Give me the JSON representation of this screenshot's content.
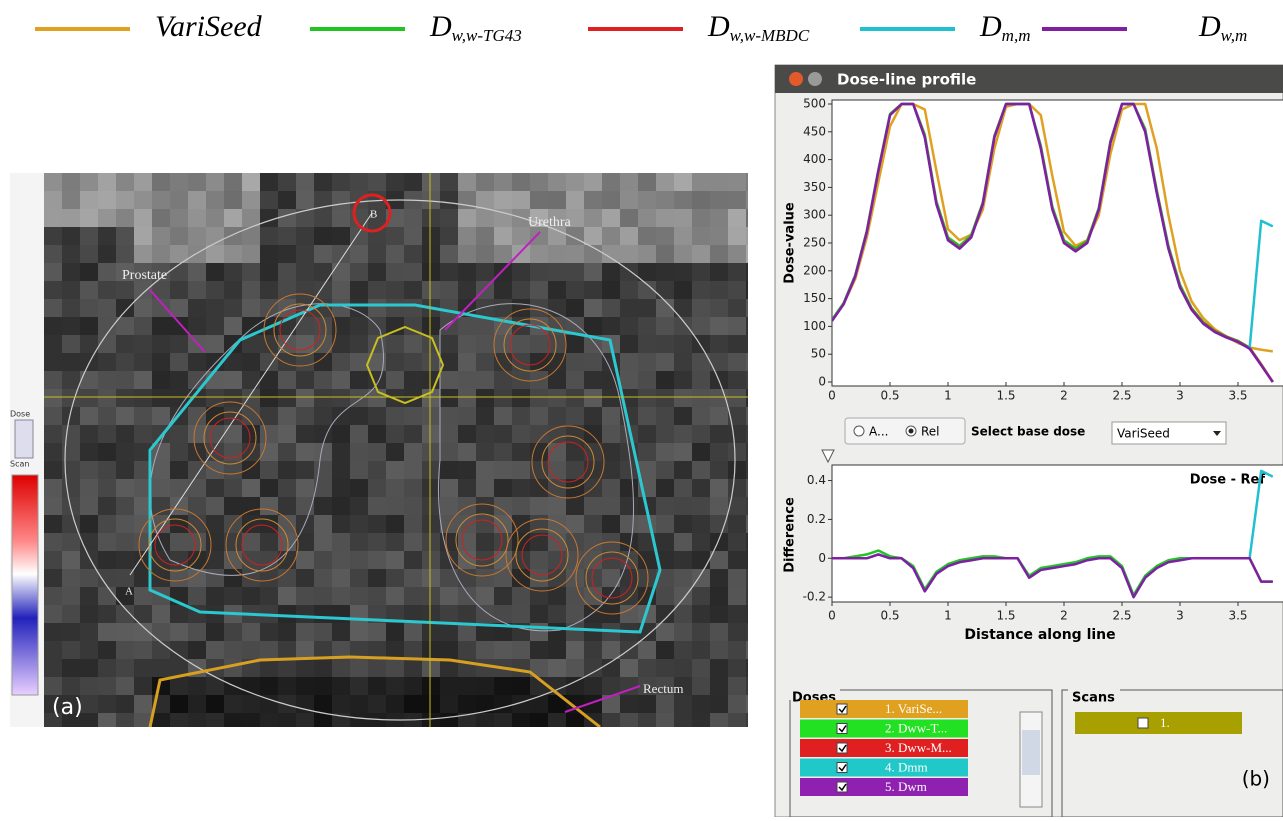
{
  "legend": [
    {
      "label": "VariSeed",
      "color": "#e0a020"
    },
    {
      "label": "D",
      "sub": "w,w-TG43",
      "color": "#22c422"
    },
    {
      "label": "D",
      "sub": "w,w-MBDC",
      "color": "#e02020"
    },
    {
      "label": "D",
      "sub": "m,m",
      "color": "#20c0d0"
    },
    {
      "label": "D",
      "sub": "w,m",
      "color": "#8020a0"
    }
  ],
  "left_panel": {
    "panel_label": "(a)",
    "prostate": "Prostate",
    "urethra": "Urethra",
    "rectum": "Rectum",
    "point_a": "A",
    "point_b": "B",
    "dose_button": "Dose",
    "scan_button": "Scan"
  },
  "window": {
    "title": "Dose-line profile",
    "profile_chart": {
      "type": "line",
      "y_label": "Dose-value",
      "xlim": [
        0,
        3.85
      ],
      "ylim": [
        0,
        500
      ],
      "xticks": [
        0,
        0.5,
        1,
        1.5,
        2,
        2.5,
        3,
        3.5
      ],
      "yticks": [
        0,
        50,
        100,
        150,
        200,
        250,
        300,
        350,
        400,
        450,
        500
      ],
      "x": [
        0,
        0.1,
        0.2,
        0.3,
        0.4,
        0.5,
        0.6,
        0.7,
        0.8,
        0.9,
        1,
        1.1,
        1.2,
        1.3,
        1.4,
        1.5,
        1.6,
        1.7,
        1.8,
        1.9,
        2,
        2.1,
        2.2,
        2.3,
        2.4,
        2.5,
        2.6,
        2.7,
        2.8,
        2.9,
        3,
        3.1,
        3.2,
        3.3,
        3.4,
        3.5,
        3.6,
        3.7,
        3.8
      ],
      "series": [
        {
          "color": "#e0a020",
          "values": [
            110,
            140,
            185,
            260,
            360,
            460,
            500,
            500,
            490,
            380,
            275,
            255,
            265,
            310,
            420,
            495,
            500,
            500,
            480,
            370,
            270,
            245,
            255,
            300,
            410,
            490,
            500,
            500,
            420,
            300,
            200,
            145,
            115,
            95,
            82,
            70,
            62,
            58,
            55
          ]
        },
        {
          "color": "#22c422",
          "values": [
            112,
            142,
            192,
            272,
            382,
            482,
            500,
            500,
            445,
            325,
            260,
            245,
            264,
            323,
            443,
            500,
            500,
            500,
            425,
            315,
            255,
            240,
            254,
            313,
            433,
            500,
            500,
            455,
            345,
            245,
            175,
            133,
            108,
            92,
            82,
            74,
            62,
            32,
            0
          ]
        },
        {
          "color": "#e02020",
          "values": [
            110,
            140,
            190,
            270,
            380,
            480,
            500,
            500,
            441,
            321,
            256,
            241,
            261,
            321,
            441,
            500,
            500,
            500,
            421,
            311,
            251,
            236,
            251,
            311,
            431,
            500,
            500,
            451,
            341,
            241,
            171,
            131,
            106,
            91,
            81,
            73,
            61,
            31,
            0
          ]
        },
        {
          "color": "#20c0d0",
          "values": [
            110,
            140,
            190,
            270,
            380,
            480,
            500,
            500,
            440,
            320,
            255,
            240,
            260,
            320,
            440,
            500,
            500,
            500,
            420,
            310,
            250,
            235,
            250,
            310,
            430,
            500,
            500,
            450,
            340,
            240,
            170,
            130,
            105,
            90,
            80,
            72,
            60,
            290,
            280
          ]
        },
        {
          "color": "#8020a0",
          "values": [
            110,
            140,
            190,
            270,
            380,
            480,
            500,
            500,
            440,
            320,
            255,
            240,
            260,
            320,
            440,
            500,
            500,
            500,
            420,
            310,
            250,
            235,
            250,
            310,
            430,
            500,
            500,
            450,
            340,
            240,
            170,
            130,
            105,
            90,
            80,
            72,
            60,
            30,
            0
          ]
        }
      ]
    },
    "controls": {
      "radio_abs": "A...",
      "radio_rel": "Rel",
      "base_dose_label": "Select base dose",
      "base_dose_value": "VariSeed"
    },
    "difference_chart": {
      "type": "line",
      "annotation": "Dose - Ref",
      "x_label": "Distance along line",
      "y_label": "Difference",
      "xlim": [
        0,
        3.85
      ],
      "ylim": [
        -0.225,
        0.48
      ],
      "xticks": [
        0,
        0.5,
        1,
        1.5,
        2,
        2.5,
        3,
        3.5
      ],
      "yticks": [
        -0.2,
        0,
        0.2,
        0.4
      ],
      "x": [
        0,
        0.1,
        0.2,
        0.3,
        0.4,
        0.5,
        0.6,
        0.7,
        0.8,
        0.9,
        1,
        1.1,
        1.2,
        1.3,
        1.4,
        1.5,
        1.6,
        1.7,
        1.8,
        1.9,
        2,
        2.1,
        2.2,
        2.3,
        2.4,
        2.5,
        2.6,
        2.7,
        2.8,
        2.9,
        3,
        3.1,
        3.2,
        3.3,
        3.4,
        3.5,
        3.6,
        3.7,
        3.8
      ],
      "series": [
        {
          "color": "#22c422",
          "values": [
            0,
            0,
            0.01,
            0.02,
            0.04,
            0.01,
            0,
            -0.04,
            -0.16,
            -0.07,
            -0.03,
            -0.01,
            0,
            0.01,
            0.01,
            0,
            0,
            -0.09,
            -0.05,
            -0.04,
            -0.03,
            -0.02,
            0,
            0.01,
            0.01,
            -0.04,
            -0.19,
            -0.09,
            -0.04,
            -0.01,
            0,
            0,
            0,
            0,
            0,
            0,
            0,
            -0.12,
            -0.12
          ]
        },
        {
          "color": "#20c0d0",
          "values": [
            0,
            0,
            0,
            0,
            0.02,
            0,
            0,
            -0.05,
            -0.17,
            -0.08,
            -0.04,
            -0.02,
            -0.01,
            0,
            0,
            0,
            0,
            -0.1,
            -0.06,
            -0.05,
            -0.04,
            -0.03,
            -0.01,
            0,
            0,
            -0.05,
            -0.2,
            -0.1,
            -0.05,
            -0.02,
            -0.01,
            0,
            0,
            0,
            0,
            0,
            0,
            0.45,
            0.42
          ]
        },
        {
          "color": "#8020a0",
          "values": [
            0,
            0,
            0,
            0,
            0.02,
            0,
            0,
            -0.05,
            -0.17,
            -0.08,
            -0.04,
            -0.02,
            -0.01,
            0,
            0,
            0,
            0,
            -0.1,
            -0.06,
            -0.05,
            -0.04,
            -0.03,
            -0.01,
            0,
            0,
            -0.05,
            -0.2,
            -0.1,
            -0.05,
            -0.02,
            -0.01,
            0,
            0,
            0,
            0,
            0,
            0,
            -0.12,
            -0.12
          ]
        }
      ]
    },
    "doses": {
      "title": "Doses",
      "items": [
        {
          "label": "1. VariSe...",
          "color": "#e0a020"
        },
        {
          "label": "2. Dww-T...",
          "color": "#22e022"
        },
        {
          "label": "3. Dww-M...",
          "color": "#e02020"
        },
        {
          "label": "4. Dmm",
          "color": "#20c8c8"
        },
        {
          "label": "5. Dwm",
          "color": "#9020b0"
        }
      ]
    },
    "scans": {
      "title": "Scans",
      "items": [
        "1."
      ]
    },
    "panel_label": "(b)"
  }
}
